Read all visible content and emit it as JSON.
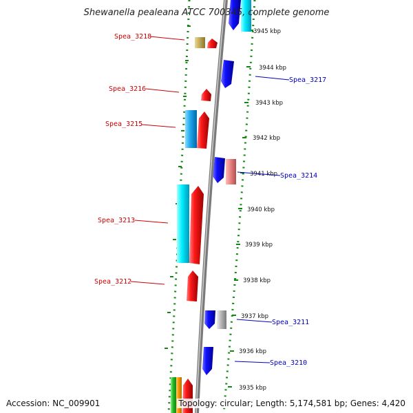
{
  "title": "Shewanella pealeana ATCC 700345, complete genome",
  "footer": {
    "accession": "Accession: NC_009901",
    "topology": "Topology: circular; Length: 5,174,581 bp; Genes: 4,420"
  },
  "ruler": [
    "3945 kbp",
    "3944 kbp",
    "3943 kbp",
    "3942 kbp",
    "3941 kbp",
    "3940 kbp",
    "3939 kbp",
    "3938 kbp",
    "3937 kbp",
    "3936 kbp",
    "3935 kbp"
  ],
  "gene_labels": [
    {
      "text": "Spea_3218",
      "side": "left",
      "color": "#cc0000"
    },
    {
      "text": "Spea_3217",
      "side": "right",
      "color": "#0000bb"
    },
    {
      "text": "Spea_3216",
      "side": "left",
      "color": "#cc0000"
    },
    {
      "text": "Spea_3215",
      "side": "left",
      "color": "#cc0000"
    },
    {
      "text": "Spea_3214",
      "side": "right",
      "color": "#0000bb"
    },
    {
      "text": "Spea_3213",
      "side": "left",
      "color": "#cc0000"
    },
    {
      "text": "Spea_3212",
      "side": "left",
      "color": "#cc0000"
    },
    {
      "text": "Spea_3211",
      "side": "right",
      "color": "#0000bb"
    },
    {
      "text": "Spea_3210",
      "side": "right",
      "color": "#0000bb"
    }
  ],
  "colors": {
    "forward": "#ee1111",
    "reverse": "#1111ee",
    "cyan": "#00e0f0",
    "light_blue": "#22aaee",
    "pink": "#ee8888",
    "gray": "#bbbbbb",
    "khaki": "#c8b060",
    "green": "#22bb22",
    "orange": "#ff9900",
    "backbone": "#888888",
    "dots": "#118811"
  }
}
